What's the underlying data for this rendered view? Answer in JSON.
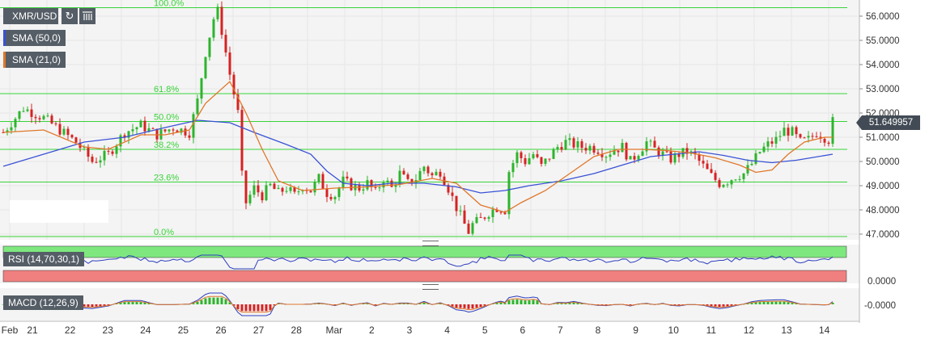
{
  "header": {
    "symbol": "XMR/USD",
    "sma50_label": "SMA (50,0)",
    "sma21_label": "SMA (21,0)",
    "refresh_icon": "refresh-icon",
    "settings_icon": "indicators-icon"
  },
  "price_axis": {
    "ticks": [
      "56.0000",
      "55.0000",
      "54.0000",
      "53.0000",
      "52.0000",
      "51.0000",
      "50.0000",
      "49.0000",
      "48.0000",
      "47.0000"
    ],
    "current_price": "51.649957"
  },
  "rsi": {
    "label": "RSI (14,70,30,1)",
    "axis_tick": "0.0000"
  },
  "macd": {
    "label": "MACD (12,26,9)",
    "axis_tick": "-0.0000"
  },
  "date_axis": [
    "Feb",
    "21",
    "22",
    "23",
    "24",
    "25",
    "26",
    "27",
    "28",
    "Mar",
    "2",
    "3",
    "4",
    "5",
    "6",
    "7",
    "8",
    "9",
    "10",
    "11",
    "12",
    "13",
    "14"
  ],
  "chart_data": {
    "type": "candlestick",
    "ylim": [
      46.8,
      56.4
    ],
    "fib_levels": [
      {
        "label": "100.0%",
        "value": 56.35
      },
      {
        "label": "61.8%",
        "value": 52.8
      },
      {
        "label": "50.0%",
        "value": 51.65
      },
      {
        "label": "38.2%",
        "value": 50.5
      },
      {
        "label": "23.6%",
        "value": 49.15
      },
      {
        "label": "0.0%",
        "value": 46.9
      }
    ],
    "price_path": [
      [
        0,
        51.2
      ],
      [
        5,
        52.2
      ],
      [
        10,
        51.8
      ],
      [
        14,
        51.3
      ],
      [
        18,
        50.8
      ],
      [
        22,
        50.0
      ],
      [
        26,
        50.3
      ],
      [
        30,
        51.2
      ],
      [
        34,
        51.5
      ],
      [
        38,
        51.1
      ],
      [
        42,
        51.4
      ],
      [
        46,
        51.2
      ],
      [
        48,
        52.5
      ],
      [
        50,
        54.5
      ],
      [
        52,
        55.9
      ],
      [
        53,
        56.2
      ],
      [
        54,
        55.4
      ],
      [
        56,
        53.6
      ],
      [
        58,
        52.0
      ],
      [
        59,
        49.4
      ],
      [
        60,
        48.3
      ],
      [
        62,
        48.9
      ],
      [
        64,
        48.6
      ],
      [
        66,
        49.0
      ],
      [
        68,
        48.7
      ],
      [
        70,
        48.9
      ],
      [
        72,
        48.6
      ],
      [
        74,
        49.0
      ],
      [
        76,
        48.8
      ],
      [
        78,
        49.3
      ],
      [
        80,
        48.7
      ],
      [
        82,
        48.6
      ],
      [
        84,
        49.2
      ],
      [
        86,
        49.0
      ],
      [
        88,
        48.9
      ],
      [
        90,
        49.1
      ],
      [
        92,
        48.7
      ],
      [
        94,
        49.3
      ],
      [
        96,
        48.9
      ],
      [
        98,
        49.5
      ],
      [
        100,
        49.1
      ],
      [
        102,
        49.3
      ],
      [
        104,
        49.8
      ],
      [
        106,
        49.4
      ],
      [
        108,
        49.6
      ],
      [
        110,
        48.9
      ],
      [
        112,
        48.1
      ],
      [
        114,
        47.4
      ],
      [
        115,
        47.1
      ],
      [
        116,
        47.4
      ],
      [
        118,
        47.6
      ],
      [
        120,
        47.9
      ],
      [
        122,
        48.1
      ],
      [
        124,
        48.0
      ],
      [
        125,
        49.6
      ],
      [
        127,
        50.3
      ],
      [
        129,
        50.0
      ],
      [
        131,
        50.3
      ],
      [
        133,
        49.8
      ],
      [
        135,
        50.2
      ],
      [
        137,
        50.6
      ],
      [
        139,
        50.8
      ],
      [
        141,
        50.7
      ],
      [
        143,
        50.6
      ],
      [
        145,
        50.6
      ],
      [
        147,
        50.5
      ],
      [
        149,
        50.3
      ],
      [
        151,
        50.5
      ],
      [
        153,
        50.6
      ],
      [
        155,
        50.0
      ],
      [
        157,
        50.4
      ],
      [
        159,
        50.8
      ],
      [
        161,
        50.5
      ],
      [
        163,
        50.3
      ],
      [
        165,
        50.1
      ],
      [
        167,
        50.3
      ],
      [
        169,
        50.4
      ],
      [
        171,
        50.2
      ],
      [
        173,
        49.8
      ],
      [
        175,
        49.4
      ],
      [
        177,
        49.1
      ],
      [
        179,
        49.2
      ],
      [
        181,
        49.4
      ],
      [
        183,
        49.5
      ],
      [
        185,
        49.9
      ],
      [
        187,
        50.4
      ],
      [
        189,
        50.7
      ],
      [
        191,
        50.9
      ],
      [
        193,
        51.3
      ],
      [
        195,
        51.2
      ],
      [
        197,
        50.8
      ],
      [
        199,
        50.9
      ],
      [
        201,
        51.2
      ],
      [
        203,
        51.0
      ],
      [
        204,
        50.9
      ],
      [
        205,
        51.65
      ]
    ],
    "series": [
      {
        "name": "SMA (50,0)",
        "color": "#3a52d6",
        "values": [
          [
            0,
            49.8
          ],
          [
            10,
            50.3
          ],
          [
            20,
            50.8
          ],
          [
            30,
            51.0
          ],
          [
            40,
            51.4
          ],
          [
            48,
            51.7
          ],
          [
            56,
            51.6
          ],
          [
            62,
            51.2
          ],
          [
            70,
            50.7
          ],
          [
            76,
            50.3
          ],
          [
            80,
            49.6
          ],
          [
            84,
            49.1
          ],
          [
            90,
            49.0
          ],
          [
            96,
            49.1
          ],
          [
            104,
            49.1
          ],
          [
            112,
            48.95
          ],
          [
            118,
            48.7
          ],
          [
            124,
            48.8
          ],
          [
            130,
            49.0
          ],
          [
            138,
            49.2
          ],
          [
            146,
            49.5
          ],
          [
            154,
            49.9
          ],
          [
            160,
            50.2
          ],
          [
            166,
            50.3
          ],
          [
            172,
            50.4
          ],
          [
            178,
            50.25
          ],
          [
            184,
            50.05
          ],
          [
            190,
            49.95
          ],
          [
            196,
            50.05
          ],
          [
            205,
            50.3
          ]
        ]
      },
      {
        "name": "SMA (21,0)",
        "color": "#e0772a",
        "values": [
          [
            0,
            51.2
          ],
          [
            10,
            51.3
          ],
          [
            20,
            50.6
          ],
          [
            26,
            50.5
          ],
          [
            34,
            51.1
          ],
          [
            40,
            51.1
          ],
          [
            46,
            51.3
          ],
          [
            50,
            52.4
          ],
          [
            56,
            53.3
          ],
          [
            60,
            52.0
          ],
          [
            64,
            50.5
          ],
          [
            68,
            49.2
          ],
          [
            74,
            48.8
          ],
          [
            82,
            48.9
          ],
          [
            90,
            48.95
          ],
          [
            98,
            49.05
          ],
          [
            106,
            49.3
          ],
          [
            112,
            49.1
          ],
          [
            118,
            48.2
          ],
          [
            124,
            47.9
          ],
          [
            128,
            48.3
          ],
          [
            134,
            48.8
          ],
          [
            140,
            49.5
          ],
          [
            146,
            50.2
          ],
          [
            152,
            50.5
          ],
          [
            158,
            50.5
          ],
          [
            164,
            50.45
          ],
          [
            170,
            50.35
          ],
          [
            176,
            50.15
          ],
          [
            182,
            49.85
          ],
          [
            186,
            49.55
          ],
          [
            190,
            49.65
          ],
          [
            194,
            50.3
          ],
          [
            198,
            50.8
          ],
          [
            203,
            51.0
          ],
          [
            205,
            51.0
          ]
        ]
      }
    ]
  },
  "colors": {
    "up": "#2db42d",
    "down": "#d62222",
    "fib": "#39d339",
    "rsi_top": "#7ee87e",
    "rsi_bottom": "#f08080"
  }
}
